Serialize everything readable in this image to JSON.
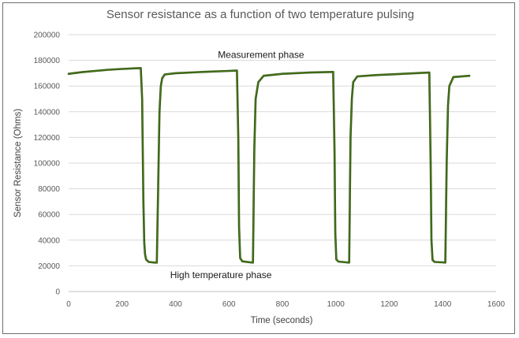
{
  "chart_data": {
    "type": "line",
    "title": "Sensor resistance as a function of two temperature pulsing",
    "xlabel": "Time (seconds)",
    "ylabel": "Sensor Resistance (Ohms)",
    "xlim": [
      0,
      1600
    ],
    "ylim": [
      0,
      200000
    ],
    "xticks": [
      0,
      200,
      400,
      600,
      800,
      1000,
      1200,
      1400,
      1600
    ],
    "yticks": [
      0,
      20000,
      40000,
      60000,
      80000,
      100000,
      120000,
      140000,
      160000,
      180000,
      200000
    ],
    "grid": "horizontal",
    "line_color": "#4a7a1c",
    "series": [
      {
        "x": [
          0,
          50,
          100,
          150,
          200,
          250,
          270,
          275,
          280,
          283,
          286,
          290,
          300,
          320,
          330,
          335,
          340,
          345,
          350,
          360,
          400,
          500,
          600,
          630,
          635,
          638,
          642,
          650,
          680,
          690,
          695,
          700,
          710,
          730,
          800,
          900,
          990,
          995,
          998,
          1002,
          1010,
          1040,
          1050,
          1055,
          1060,
          1065,
          1080,
          1150,
          1250,
          1350,
          1355,
          1358,
          1362,
          1370,
          1400,
          1410,
          1415,
          1420,
          1425,
          1440,
          1500
        ],
        "y": [
          169500,
          170800,
          171800,
          172700,
          173300,
          173800,
          174000,
          150000,
          70000,
          38000,
          29000,
          25000,
          23000,
          22600,
          22500,
          80000,
          140000,
          160000,
          166000,
          169000,
          170000,
          171000,
          171800,
          172000,
          120000,
          50000,
          26000,
          23500,
          22700,
          22500,
          110000,
          150000,
          163000,
          168000,
          169500,
          170500,
          171000,
          110000,
          45000,
          25000,
          23300,
          22700,
          22500,
          120000,
          150000,
          163000,
          167500,
          168500,
          169500,
          170500,
          100000,
          40000,
          24500,
          23000,
          22700,
          22500,
          100000,
          145000,
          160000,
          167000,
          168000
        ]
      }
    ],
    "annotations": [
      {
        "text": "Measurement phase",
        "x": 720,
        "y": 182000
      },
      {
        "text": "High temperature phase",
        "x": 570,
        "y": 10500
      }
    ]
  }
}
